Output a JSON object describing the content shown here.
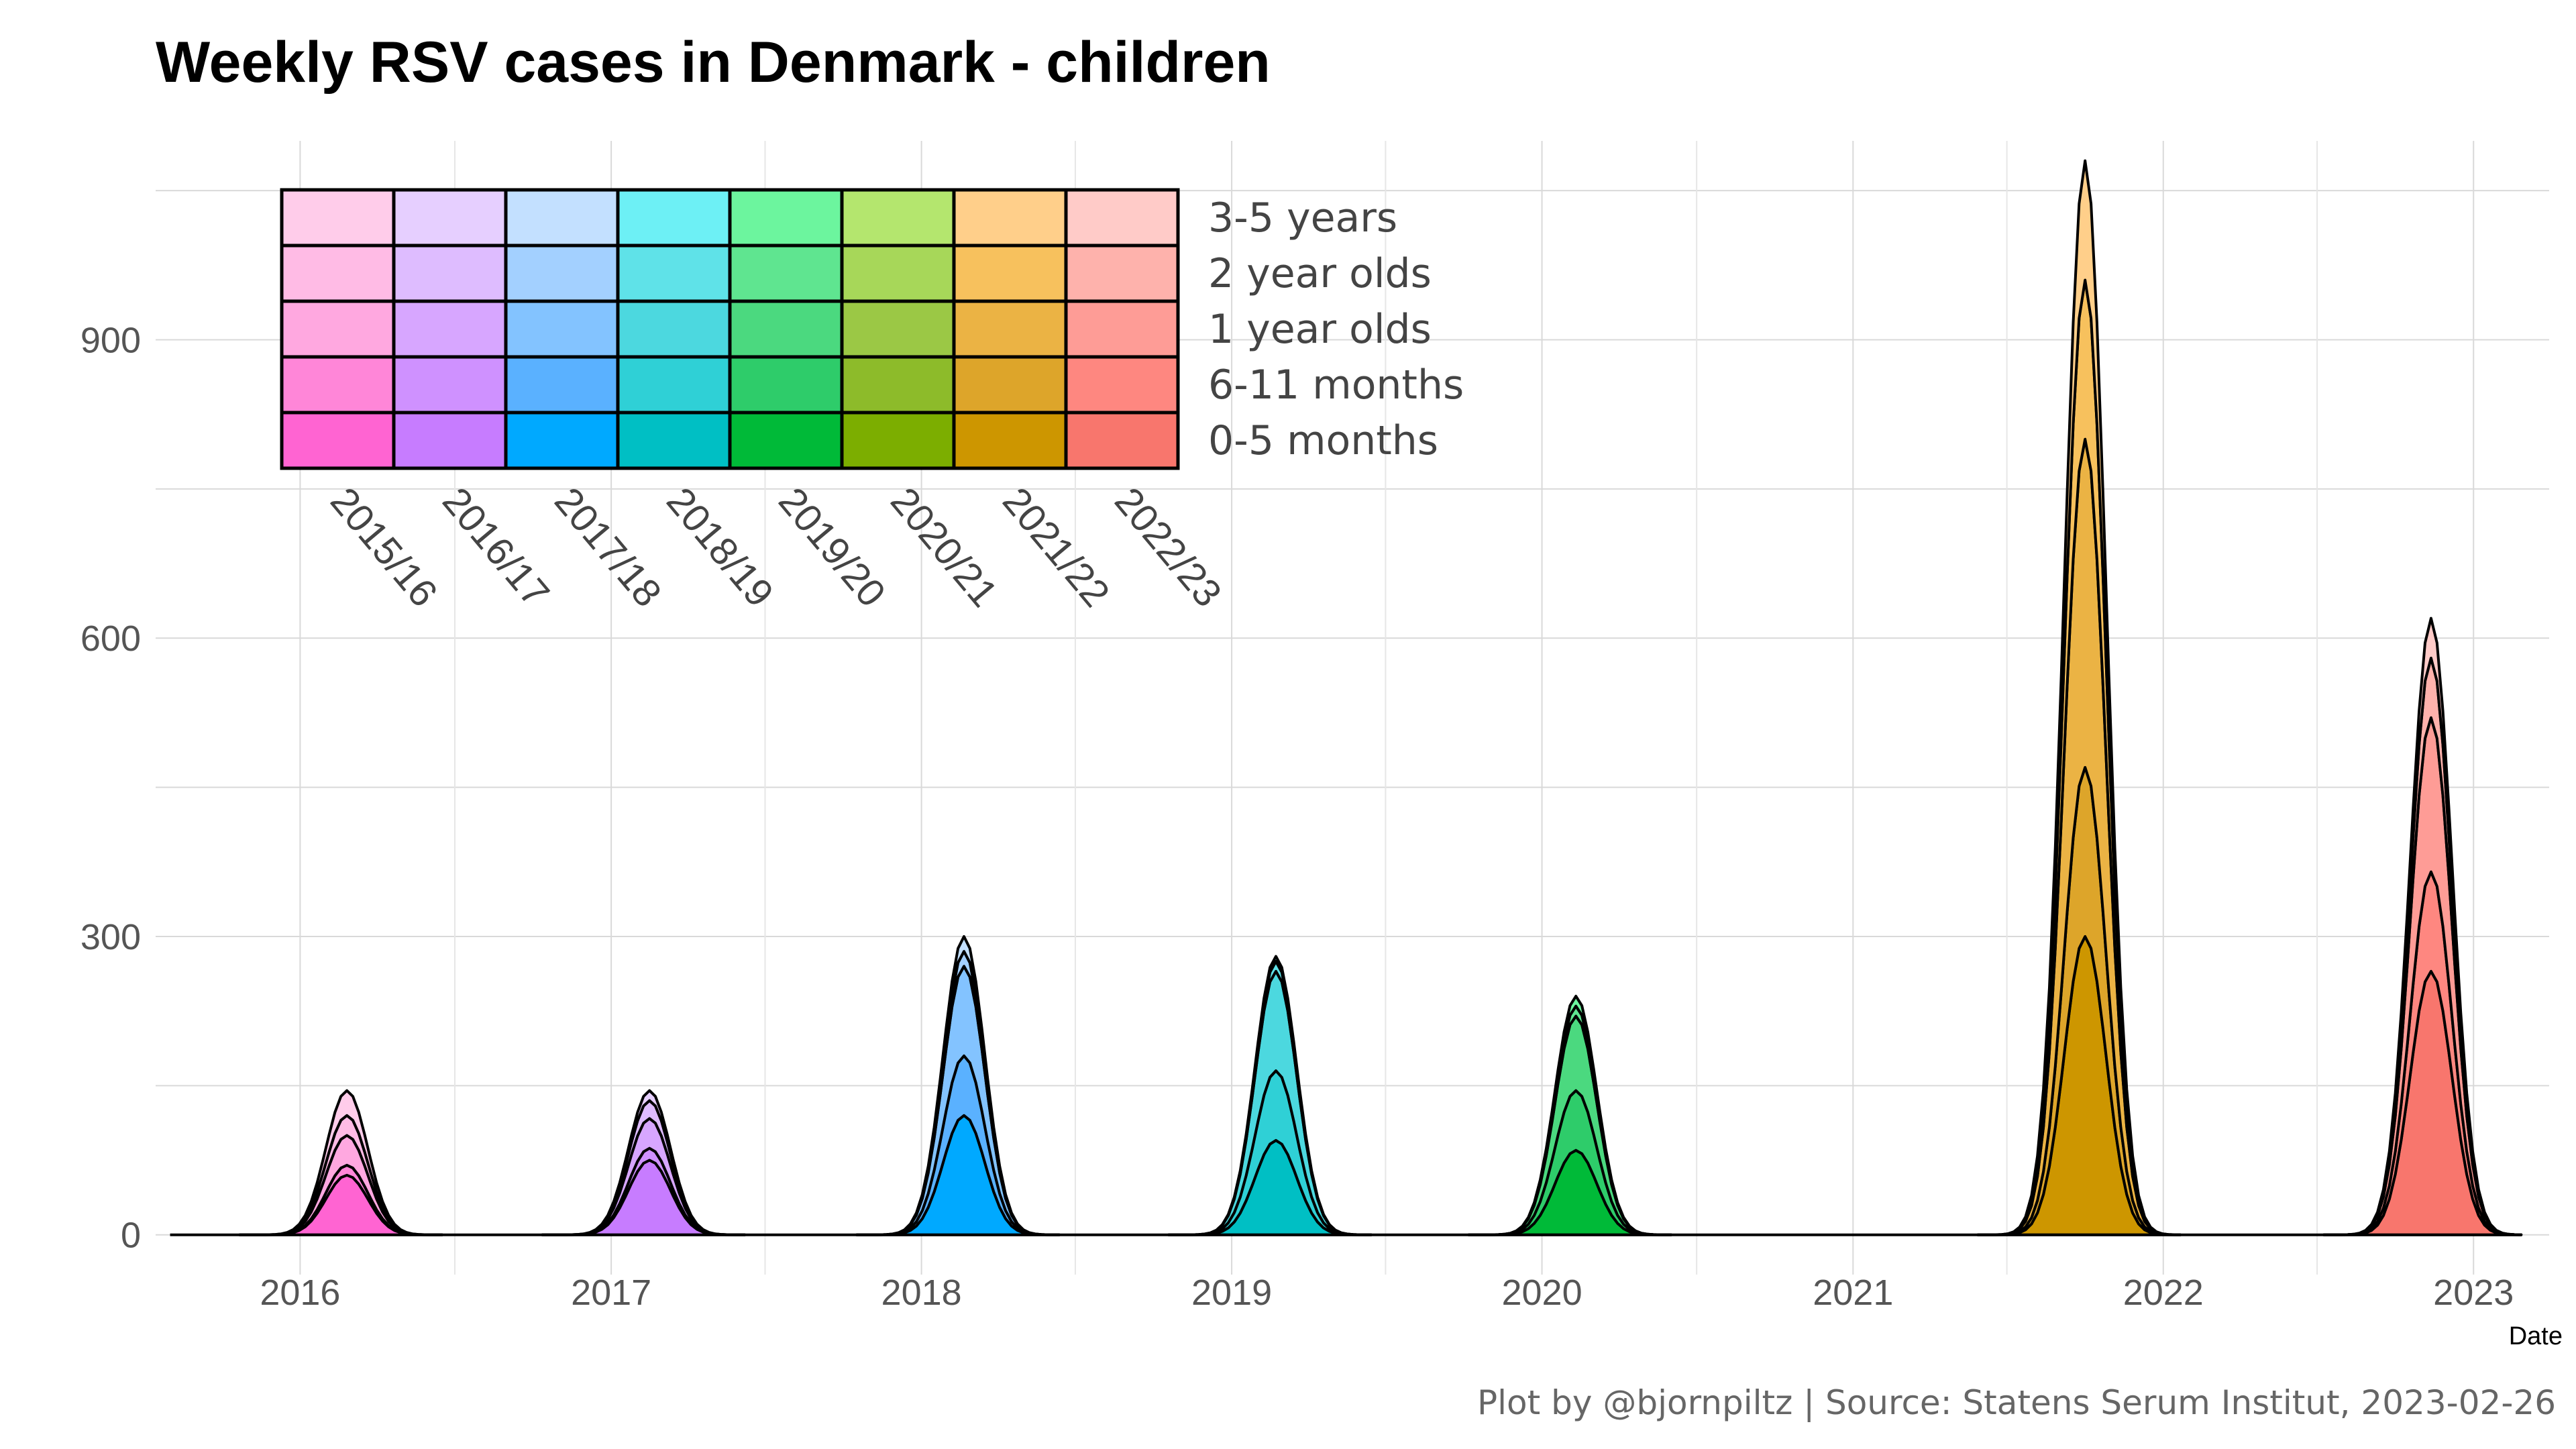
{
  "chart_data": {
    "type": "area",
    "stacked": true,
    "title": "Weekly RSV cases in Denmark - children",
    "xlabel": "Date",
    "ylabel": "",
    "caption": "Plot by @bjornpiltz | Source: Statens Serum Institut, 2023-02-26",
    "x_range": [
      "2015-07-15",
      "2023-03-31"
    ],
    "ylim": [
      -40,
      1100
    ],
    "y_ticks": [
      0,
      300,
      600,
      900
    ],
    "x_ticks": [
      "2016",
      "2017",
      "2018",
      "2019",
      "2020",
      "2021",
      "2022",
      "2023"
    ],
    "grid": true,
    "legend_position": "top-left inset",
    "age_groups": [
      "0-5 months",
      "6-11 months",
      "1 year olds",
      "2 year olds",
      "3-5 years"
    ],
    "legend_rows": [
      "3-5 years",
      "2 year olds",
      "1 year olds",
      "6-11 months",
      "0-5 months"
    ],
    "season_labels": [
      "2015/16",
      "2016/17",
      "2017/18",
      "2018/19",
      "2019/20",
      "2020/21",
      "2021/22",
      "2022/23"
    ],
    "palette": [
      [
        "#FF64D2",
        "#FF86D8",
        "#FFA8E0",
        "#FFBBE5",
        "#FFCCEA"
      ],
      [
        "#C77CFF",
        "#CF91FF",
        "#D7A6FF",
        "#DEBCFF",
        "#E6CFFF"
      ],
      [
        "#00A9FF",
        "#5AB1FF",
        "#83C3FF",
        "#A3D0FF",
        "#C3E0FF"
      ],
      [
        "#00BFC4",
        "#2FD0D6",
        "#4CD8DF",
        "#5FE2E8",
        "#6DF0F5"
      ],
      [
        "#00BA38",
        "#2ECC6A",
        "#4BD97F",
        "#5FE590",
        "#6CF59E"
      ],
      [
        "#7CAE00",
        "#8DBB2A",
        "#9BC845",
        "#A7D759",
        "#B4E66E"
      ],
      [
        "#CD9600",
        "#DDA52A",
        "#EBB344",
        "#F7C15D",
        "#FFCF8A"
      ],
      [
        "#F8766D",
        "#FE8780",
        "#FE9C96",
        "#FEB2AC",
        "#FFCBC8"
      ]
    ],
    "seasons": [
      {
        "name": "2015/16",
        "peak_date": "2016-02-25",
        "peak_week_values": [
          60,
          10,
          30,
          20,
          25
        ],
        "peak_total": 145
      },
      {
        "name": "2016/17",
        "peak_date": "2017-02-15",
        "peak_week_values": [
          75,
          12,
          30,
          18,
          10
        ],
        "peak_total": 145
      },
      {
        "name": "2017/18",
        "peak_date": "2018-02-20",
        "peak_week_values": [
          120,
          60,
          90,
          15,
          15
        ],
        "peak_total": 300
      },
      {
        "name": "2018/19",
        "peak_date": "2019-02-22",
        "peak_week_values": [
          95,
          70,
          100,
          10,
          5
        ],
        "peak_total": 280
      },
      {
        "name": "2019/20",
        "peak_date": "2020-02-10",
        "peak_week_values": [
          85,
          60,
          75,
          10,
          10
        ],
        "peak_total": 240
      },
      {
        "name": "2020/21",
        "peak_date": "2021-02-15",
        "peak_week_values": [
          0,
          0,
          0,
          0,
          0
        ],
        "peak_total": 0
      },
      {
        "name": "2021/22",
        "peak_date": "2021-10-01",
        "peak_week_values": [
          300,
          170,
          330,
          160,
          120
        ],
        "peak_total": 1080
      },
      {
        "name": "2022/23",
        "peak_date": "2022-11-12",
        "peak_week_values": [
          265,
          100,
          155,
          60,
          40
        ],
        "peak_total": 620
      }
    ]
  }
}
